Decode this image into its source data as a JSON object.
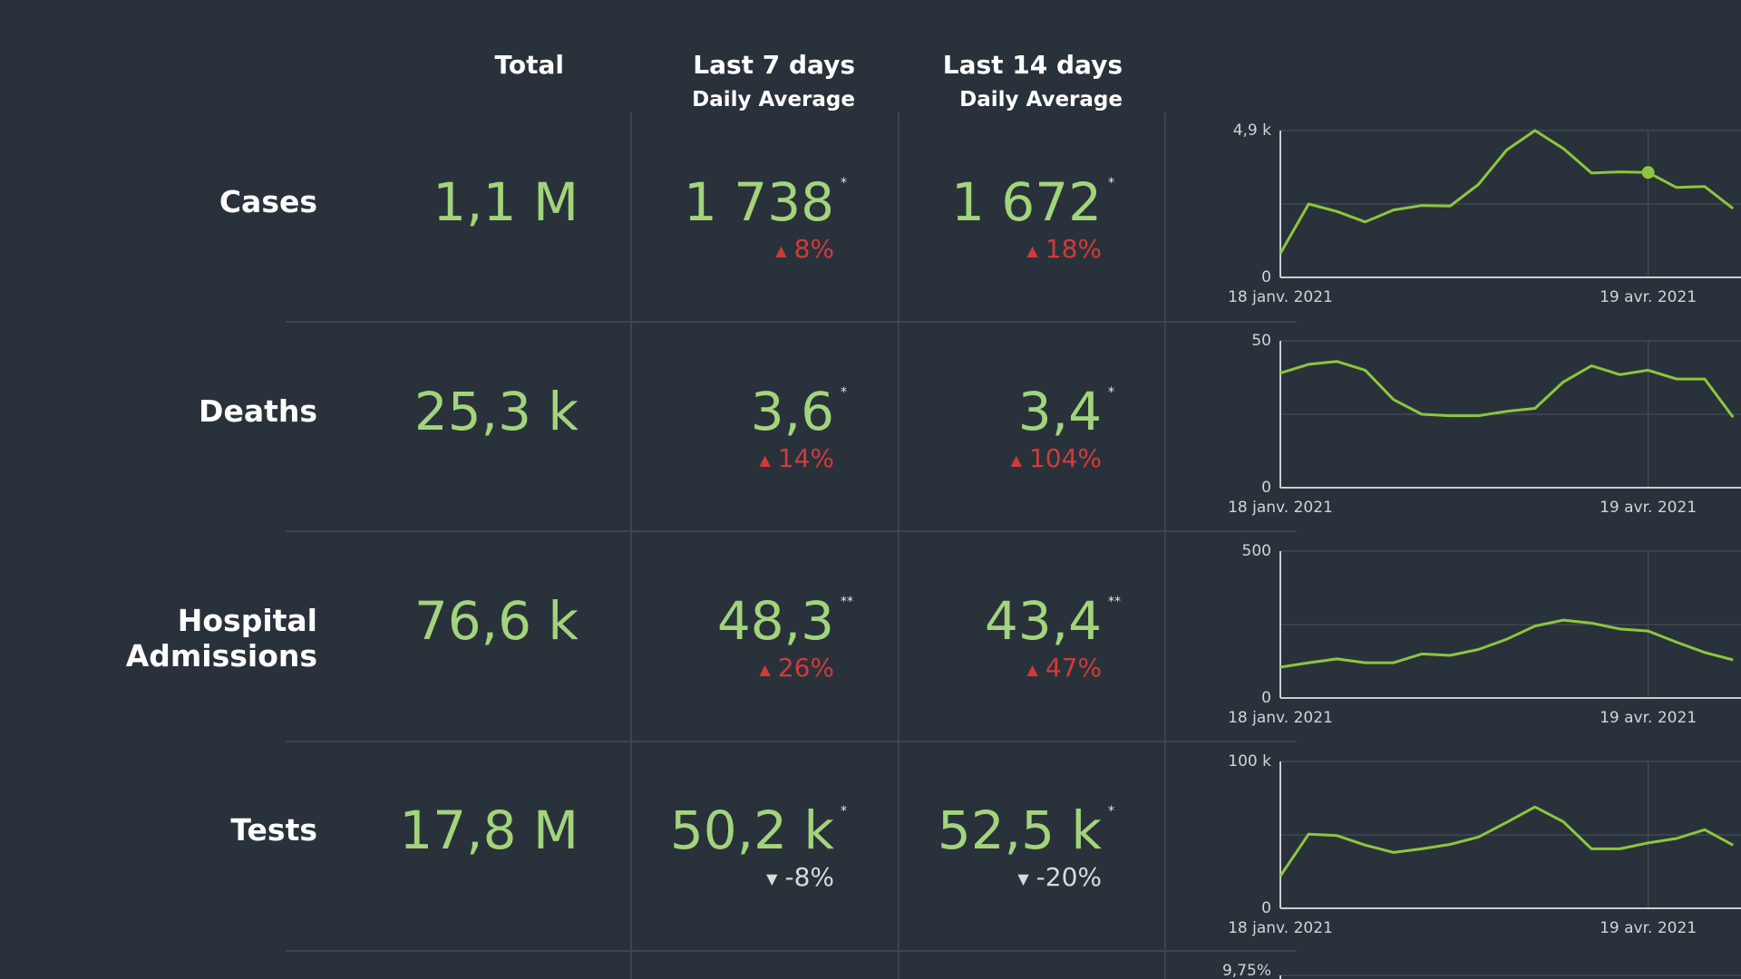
{
  "colors": {
    "background": "#29323a",
    "value": "#a3d47c",
    "up": "#d13a3a",
    "down": "#dadada",
    "line": "#8cc63f",
    "grid": "#4a545c"
  },
  "headers": {
    "total": "Total",
    "last7": "Last 7 days",
    "last7_sub": "Daily Average",
    "last14": "Last 14 days",
    "last14_sub": "Daily Average"
  },
  "rows": [
    {
      "label": "Cases",
      "total": "1,1 M",
      "avg7": "1 738",
      "avg7_mark": "*",
      "avg7_change": "8%",
      "avg7_dir": "up",
      "avg14": "1 672",
      "avg14_mark": "*",
      "avg14_change": "18%",
      "avg14_dir": "up"
    },
    {
      "label": "Deaths",
      "total": "25,3 k",
      "avg7": "3,6",
      "avg7_mark": "*",
      "avg7_change": "14%",
      "avg7_dir": "up",
      "avg14": "3,4",
      "avg14_mark": "*",
      "avg14_change": "104%",
      "avg14_dir": "up"
    },
    {
      "label": "Hospital Admissions",
      "total": "76,6 k",
      "avg7": "48,3",
      "avg7_mark": "**",
      "avg7_change": "26%",
      "avg7_dir": "up",
      "avg14": "43,4",
      "avg14_mark": "**",
      "avg14_change": "47%",
      "avg14_dir": "up"
    },
    {
      "label": "Tests",
      "total": "17,8 M",
      "avg7": "50,2 k",
      "avg7_mark": "*",
      "avg7_change": "-8%",
      "avg7_dir": "down",
      "avg14": "52,5 k",
      "avg14_mark": "*",
      "avg14_change": "-20%",
      "avg14_dir": "down"
    }
  ],
  "chart_data": [
    {
      "type": "line",
      "ylim": [
        0,
        4900
      ],
      "y_ticks": [
        "4,9 k",
        "0"
      ],
      "x_ticks": [
        "18 janv. 2021",
        "19 avr. 2021"
      ],
      "x": [
        "2021-01-18",
        "2021-01-25",
        "2021-02-01",
        "2021-02-08",
        "2021-02-15",
        "2021-02-22",
        "2021-03-01",
        "2021-03-08",
        "2021-03-15",
        "2021-03-22",
        "2021-03-29",
        "2021-04-05",
        "2021-04-12",
        "2021-04-19",
        "2021-04-26",
        "2021-05-03",
        "2021-05-10"
      ],
      "series": [
        {
          "values": [
            800,
            2450,
            2200,
            1850,
            2250,
            2400,
            2380,
            3100,
            4250,
            4900,
            4300,
            3480,
            3520,
            3500,
            3000,
            3030,
            2300
          ]
        }
      ],
      "highlight_index": 13,
      "grid": true
    },
    {
      "type": "line",
      "ylim": [
        0,
        50
      ],
      "y_ticks": [
        "50",
        "0"
      ],
      "x_ticks": [
        "18 janv. 2021",
        "19 avr. 2021"
      ],
      "x": [
        "2021-01-18",
        "2021-01-25",
        "2021-02-01",
        "2021-02-08",
        "2021-02-15",
        "2021-02-22",
        "2021-03-01",
        "2021-03-08",
        "2021-03-15",
        "2021-03-22",
        "2021-03-29",
        "2021-04-05",
        "2021-04-12",
        "2021-04-19",
        "2021-04-26",
        "2021-05-03",
        "2021-05-10"
      ],
      "series": [
        {
          "values": [
            39,
            42,
            43,
            40,
            30,
            25,
            24.5,
            24.5,
            26,
            27,
            36,
            41.5,
            38.5,
            40,
            37,
            37,
            24
          ]
        }
      ],
      "grid": true
    },
    {
      "type": "line",
      "ylim": [
        0,
        500
      ],
      "y_ticks": [
        "500",
        "0"
      ],
      "x_ticks": [
        "18 janv. 2021",
        "19 avr. 2021"
      ],
      "x": [
        "2021-01-18",
        "2021-01-25",
        "2021-02-01",
        "2021-02-08",
        "2021-02-15",
        "2021-02-22",
        "2021-03-01",
        "2021-03-08",
        "2021-03-15",
        "2021-03-22",
        "2021-03-29",
        "2021-04-05",
        "2021-04-12",
        "2021-04-19",
        "2021-04-26",
        "2021-05-03",
        "2021-05-10"
      ],
      "series": [
        {
          "values": [
            105,
            120,
            133,
            120,
            120,
            150,
            145,
            165,
            200,
            245,
            265,
            255,
            235,
            228,
            190,
            155,
            130
          ]
        }
      ],
      "grid": true
    },
    {
      "type": "line",
      "ylim": [
        0,
        100000
      ],
      "y_ticks": [
        "100 k",
        "0"
      ],
      "x_ticks": [
        "18 janv. 2021",
        "19 avr. 2021"
      ],
      "x": [
        "2021-01-18",
        "2021-01-25",
        "2021-02-01",
        "2021-02-08",
        "2021-02-15",
        "2021-02-22",
        "2021-03-01",
        "2021-03-08",
        "2021-03-15",
        "2021-03-22",
        "2021-03-29",
        "2021-04-05",
        "2021-04-12",
        "2021-04-19",
        "2021-04-26",
        "2021-05-03",
        "2021-05-10"
      ],
      "series": [
        {
          "values": [
            22000,
            50500,
            49500,
            43000,
            38000,
            40500,
            43500,
            48500,
            58500,
            69000,
            59000,
            40500,
            40500,
            44500,
            47500,
            53500,
            43000
          ]
        }
      ],
      "grid": true
    },
    {
      "type": "line",
      "y_ticks": [
        "9,75%"
      ]
    }
  ]
}
